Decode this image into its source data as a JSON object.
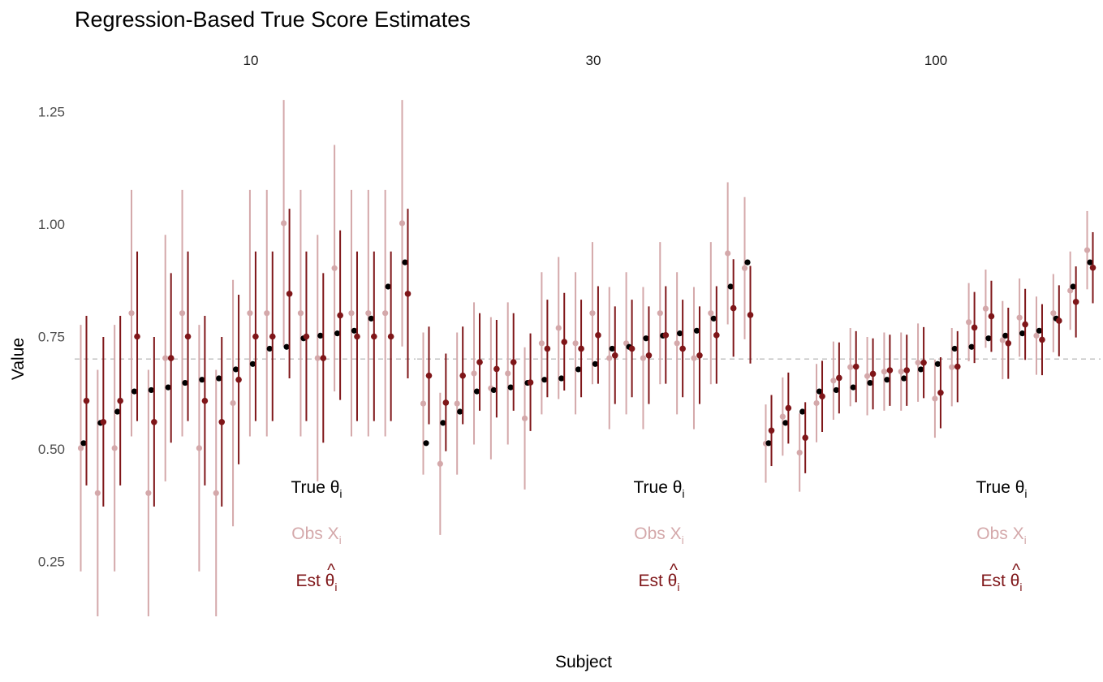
{
  "chart_data": {
    "type": "scatter",
    "title": "Regression-Based True Score Estimates",
    "xlabel": "Subject",
    "ylabel": "Value",
    "y_ticks": [
      "0.25",
      "0.50",
      "0.75",
      "1.00",
      "1.25"
    ],
    "y_tick_values": [
      0.25,
      0.5,
      0.75,
      1.0,
      1.25
    ],
    "ylim": [
      0.14,
      1.35
    ],
    "reference_line": 0.7,
    "grid": false,
    "colors": {
      "true": "#000000",
      "obs": "#d4a8aa",
      "est": "#7f1619",
      "refline": "#bdbdbd"
    },
    "legend": [
      {
        "key": "true",
        "main": "True θ",
        "sub": "i"
      },
      {
        "key": "obs",
        "main": "Obs X",
        "sub": "i"
      },
      {
        "key": "est",
        "main": "Est θ",
        "hat": "^",
        "sub": "i"
      }
    ],
    "panels": [
      {
        "label": "10",
        "subjects": [
          {
            "true": 0.513,
            "obs": 0.502,
            "obs_lo": 0.228,
            "obs_hi": 0.776,
            "est": 0.607,
            "est_lo": 0.419,
            "est_hi": 0.796
          },
          {
            "true": 0.558,
            "obs": 0.402,
            "obs_lo": 0.128,
            "obs_hi": 0.676,
            "est": 0.56,
            "est_lo": 0.372,
            "est_hi": 0.749
          },
          {
            "true": 0.583,
            "obs": 0.502,
            "obs_lo": 0.228,
            "obs_hi": 0.776,
            "est": 0.607,
            "est_lo": 0.419,
            "est_hi": 0.796
          },
          {
            "true": 0.628,
            "obs": 0.802,
            "obs_lo": 0.528,
            "obs_hi": 1.076,
            "est": 0.75,
            "est_lo": 0.562,
            "est_hi": 0.939
          },
          {
            "true": 0.631,
            "obs": 0.402,
            "obs_lo": 0.128,
            "obs_hi": 0.676,
            "est": 0.56,
            "est_lo": 0.372,
            "est_hi": 0.749
          },
          {
            "true": 0.637,
            "obs": 0.702,
            "obs_lo": 0.428,
            "obs_hi": 0.976,
            "est": 0.702,
            "est_lo": 0.514,
            "est_hi": 0.891
          },
          {
            "true": 0.647,
            "obs": 0.802,
            "obs_lo": 0.528,
            "obs_hi": 1.076,
            "est": 0.75,
            "est_lo": 0.562,
            "est_hi": 0.939
          },
          {
            "true": 0.654,
            "obs": 0.502,
            "obs_lo": 0.228,
            "obs_hi": 0.776,
            "est": 0.607,
            "est_lo": 0.419,
            "est_hi": 0.796
          },
          {
            "true": 0.657,
            "obs": 0.402,
            "obs_lo": 0.128,
            "obs_hi": 0.676,
            "est": 0.56,
            "est_lo": 0.372,
            "est_hi": 0.749
          },
          {
            "true": 0.677,
            "obs": 0.602,
            "obs_lo": 0.328,
            "obs_hi": 0.876,
            "est": 0.654,
            "est_lo": 0.466,
            "est_hi": 0.843
          },
          {
            "true": 0.689,
            "obs": 0.802,
            "obs_lo": 0.528,
            "obs_hi": 1.076,
            "est": 0.75,
            "est_lo": 0.562,
            "est_hi": 0.939
          },
          {
            "true": 0.723,
            "obs": 0.802,
            "obs_lo": 0.528,
            "obs_hi": 1.076,
            "est": 0.75,
            "est_lo": 0.562,
            "est_hi": 0.939
          },
          {
            "true": 0.727,
            "obs": 1.002,
            "obs_lo": 0.728,
            "obs_hi": 1.276,
            "est": 0.845,
            "est_lo": 0.657,
            "est_hi": 1.034
          },
          {
            "true": 0.746,
            "obs": 0.802,
            "obs_lo": 0.528,
            "obs_hi": 1.076,
            "est": 0.75,
            "est_lo": 0.562,
            "est_hi": 0.939
          },
          {
            "true": 0.752,
            "obs": 0.702,
            "obs_lo": 0.428,
            "obs_hi": 0.976,
            "est": 0.702,
            "est_lo": 0.514,
            "est_hi": 0.891
          },
          {
            "true": 0.757,
            "obs": 0.902,
            "obs_lo": 0.628,
            "obs_hi": 1.176,
            "est": 0.797,
            "est_lo": 0.609,
            "est_hi": 0.986
          },
          {
            "true": 0.763,
            "obs": 0.802,
            "obs_lo": 0.528,
            "obs_hi": 1.076,
            "est": 0.75,
            "est_lo": 0.562,
            "est_hi": 0.939
          },
          {
            "true": 0.79,
            "obs": 0.802,
            "obs_lo": 0.528,
            "obs_hi": 1.076,
            "est": 0.75,
            "est_lo": 0.562,
            "est_hi": 0.939
          },
          {
            "true": 0.861,
            "obs": 0.802,
            "obs_lo": 0.528,
            "obs_hi": 1.076,
            "est": 0.75,
            "est_lo": 0.562,
            "est_hi": 0.939
          },
          {
            "true": 0.915,
            "obs": 1.002,
            "obs_lo": 0.728,
            "obs_hi": 1.276,
            "est": 0.845,
            "est_lo": 0.657,
            "est_hi": 1.034
          }
        ]
      },
      {
        "label": "30",
        "subjects": [
          {
            "true": 0.513,
            "obs": 0.601,
            "obs_lo": 0.443,
            "obs_hi": 0.759,
            "est": 0.663,
            "est_lo": 0.555,
            "est_hi": 0.772
          },
          {
            "true": 0.558,
            "obs": 0.467,
            "obs_lo": 0.309,
            "obs_hi": 0.625,
            "est": 0.603,
            "est_lo": 0.495,
            "est_hi": 0.712
          },
          {
            "true": 0.583,
            "obs": 0.601,
            "obs_lo": 0.443,
            "obs_hi": 0.759,
            "est": 0.663,
            "est_lo": 0.555,
            "est_hi": 0.772
          },
          {
            "true": 0.628,
            "obs": 0.668,
            "obs_lo": 0.51,
            "obs_hi": 0.826,
            "est": 0.693,
            "est_lo": 0.585,
            "est_hi": 0.802
          },
          {
            "true": 0.631,
            "obs": 0.635,
            "obs_lo": 0.477,
            "obs_hi": 0.793,
            "est": 0.678,
            "est_lo": 0.57,
            "est_hi": 0.787
          },
          {
            "true": 0.637,
            "obs": 0.668,
            "obs_lo": 0.51,
            "obs_hi": 0.826,
            "est": 0.693,
            "est_lo": 0.585,
            "est_hi": 0.802
          },
          {
            "true": 0.647,
            "obs": 0.568,
            "obs_lo": 0.41,
            "obs_hi": 0.726,
            "est": 0.648,
            "est_lo": 0.54,
            "est_hi": 0.757
          },
          {
            "true": 0.654,
            "obs": 0.735,
            "obs_lo": 0.577,
            "obs_hi": 0.893,
            "est": 0.723,
            "est_lo": 0.615,
            "est_hi": 0.832
          },
          {
            "true": 0.657,
            "obs": 0.769,
            "obs_lo": 0.611,
            "obs_hi": 0.927,
            "est": 0.738,
            "est_lo": 0.63,
            "est_hi": 0.847
          },
          {
            "true": 0.677,
            "obs": 0.735,
            "obs_lo": 0.577,
            "obs_hi": 0.893,
            "est": 0.723,
            "est_lo": 0.615,
            "est_hi": 0.832
          },
          {
            "true": 0.689,
            "obs": 0.802,
            "obs_lo": 0.644,
            "obs_hi": 0.96,
            "est": 0.753,
            "est_lo": 0.645,
            "est_hi": 0.862
          },
          {
            "true": 0.723,
            "obs": 0.702,
            "obs_lo": 0.544,
            "obs_hi": 0.86,
            "est": 0.708,
            "est_lo": 0.6,
            "est_hi": 0.817
          },
          {
            "true": 0.727,
            "obs": 0.735,
            "obs_lo": 0.577,
            "obs_hi": 0.893,
            "est": 0.723,
            "est_lo": 0.615,
            "est_hi": 0.832
          },
          {
            "true": 0.746,
            "obs": 0.702,
            "obs_lo": 0.544,
            "obs_hi": 0.86,
            "est": 0.708,
            "est_lo": 0.6,
            "est_hi": 0.817
          },
          {
            "true": 0.752,
            "obs": 0.802,
            "obs_lo": 0.644,
            "obs_hi": 0.96,
            "est": 0.753,
            "est_lo": 0.645,
            "est_hi": 0.862
          },
          {
            "true": 0.757,
            "obs": 0.735,
            "obs_lo": 0.577,
            "obs_hi": 0.893,
            "est": 0.723,
            "est_lo": 0.615,
            "est_hi": 0.832
          },
          {
            "true": 0.763,
            "obs": 0.702,
            "obs_lo": 0.544,
            "obs_hi": 0.86,
            "est": 0.708,
            "est_lo": 0.6,
            "est_hi": 0.817
          },
          {
            "true": 0.79,
            "obs": 0.802,
            "obs_lo": 0.644,
            "obs_hi": 0.96,
            "est": 0.753,
            "est_lo": 0.645,
            "est_hi": 0.862
          },
          {
            "true": 0.861,
            "obs": 0.935,
            "obs_lo": 0.777,
            "obs_hi": 1.093,
            "est": 0.813,
            "est_lo": 0.705,
            "est_hi": 0.922
          },
          {
            "true": 0.915,
            "obs": 0.902,
            "obs_lo": 0.744,
            "obs_hi": 1.06,
            "est": 0.798,
            "est_lo": 0.69,
            "est_hi": 0.907
          }
        ]
      },
      {
        "label": "100",
        "subjects": [
          {
            "true": 0.513,
            "obs": 0.512,
            "obs_lo": 0.425,
            "obs_hi": 0.599,
            "est": 0.541,
            "est_lo": 0.462,
            "est_hi": 0.62
          },
          {
            "true": 0.558,
            "obs": 0.572,
            "obs_lo": 0.485,
            "obs_hi": 0.659,
            "est": 0.591,
            "est_lo": 0.512,
            "est_hi": 0.67
          },
          {
            "true": 0.583,
            "obs": 0.492,
            "obs_lo": 0.405,
            "obs_hi": 0.579,
            "est": 0.525,
            "est_lo": 0.446,
            "est_hi": 0.604
          },
          {
            "true": 0.628,
            "obs": 0.602,
            "obs_lo": 0.515,
            "obs_hi": 0.689,
            "est": 0.617,
            "est_lo": 0.538,
            "est_hi": 0.696
          },
          {
            "true": 0.631,
            "obs": 0.652,
            "obs_lo": 0.565,
            "obs_hi": 0.739,
            "est": 0.658,
            "est_lo": 0.579,
            "est_hi": 0.737
          },
          {
            "true": 0.637,
            "obs": 0.682,
            "obs_lo": 0.595,
            "obs_hi": 0.769,
            "est": 0.683,
            "est_lo": 0.604,
            "est_hi": 0.762
          },
          {
            "true": 0.647,
            "obs": 0.662,
            "obs_lo": 0.575,
            "obs_hi": 0.749,
            "est": 0.667,
            "est_lo": 0.588,
            "est_hi": 0.746
          },
          {
            "true": 0.654,
            "obs": 0.672,
            "obs_lo": 0.585,
            "obs_hi": 0.759,
            "est": 0.675,
            "est_lo": 0.596,
            "est_hi": 0.754
          },
          {
            "true": 0.657,
            "obs": 0.672,
            "obs_lo": 0.585,
            "obs_hi": 0.759,
            "est": 0.675,
            "est_lo": 0.596,
            "est_hi": 0.754
          },
          {
            "true": 0.677,
            "obs": 0.692,
            "obs_lo": 0.605,
            "obs_hi": 0.779,
            "est": 0.692,
            "est_lo": 0.613,
            "est_hi": 0.771
          },
          {
            "true": 0.689,
            "obs": 0.612,
            "obs_lo": 0.525,
            "obs_hi": 0.699,
            "est": 0.625,
            "est_lo": 0.546,
            "est_hi": 0.704
          },
          {
            "true": 0.723,
            "obs": 0.682,
            "obs_lo": 0.595,
            "obs_hi": 0.769,
            "est": 0.683,
            "est_lo": 0.604,
            "est_hi": 0.762
          },
          {
            "true": 0.727,
            "obs": 0.782,
            "obs_lo": 0.695,
            "obs_hi": 0.869,
            "est": 0.77,
            "est_lo": 0.691,
            "est_hi": 0.849
          },
          {
            "true": 0.746,
            "obs": 0.812,
            "obs_lo": 0.725,
            "obs_hi": 0.899,
            "est": 0.795,
            "est_lo": 0.716,
            "est_hi": 0.874
          },
          {
            "true": 0.752,
            "obs": 0.742,
            "obs_lo": 0.655,
            "obs_hi": 0.829,
            "est": 0.735,
            "est_lo": 0.656,
            "est_hi": 0.814
          },
          {
            "true": 0.757,
            "obs": 0.792,
            "obs_lo": 0.705,
            "obs_hi": 0.879,
            "est": 0.777,
            "est_lo": 0.698,
            "est_hi": 0.856
          },
          {
            "true": 0.763,
            "obs": 0.752,
            "obs_lo": 0.665,
            "obs_hi": 0.839,
            "est": 0.743,
            "est_lo": 0.664,
            "est_hi": 0.822
          },
          {
            "true": 0.79,
            "obs": 0.802,
            "obs_lo": 0.715,
            "obs_hi": 0.889,
            "est": 0.785,
            "est_lo": 0.706,
            "est_hi": 0.864
          },
          {
            "true": 0.861,
            "obs": 0.852,
            "obs_lo": 0.765,
            "obs_hi": 0.939,
            "est": 0.827,
            "est_lo": 0.748,
            "est_hi": 0.906
          },
          {
            "true": 0.915,
            "obs": 0.942,
            "obs_lo": 0.855,
            "obs_hi": 1.029,
            "est": 0.903,
            "est_lo": 0.824,
            "est_hi": 0.982
          }
        ]
      }
    ]
  }
}
